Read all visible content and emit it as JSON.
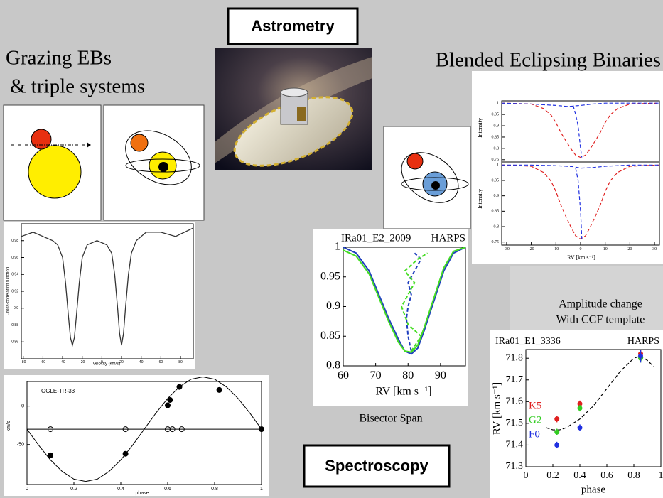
{
  "headings": {
    "grazing": [
      "Grazing EBs",
      "& triple systems"
    ],
    "blended": "Blended Eclipsing Binaries",
    "astrometry": "Astrometry",
    "spectroscopy": "Spectroscopy"
  },
  "captions": {
    "bisector_span": "Bisector Span",
    "amplitude": [
      "Amplitude change",
      "With CCF template"
    ]
  },
  "charts": {
    "ccf": {
      "type": "line",
      "xlabel": "velocity (km/s)",
      "ylabel": "Cross-correlation function",
      "xlim": [
        -82,
        93
      ],
      "ylim": [
        0.84,
        1.0
      ],
      "xticks": [
        -80,
        -60,
        -40,
        -20,
        0,
        20,
        40,
        60,
        80
      ],
      "yticks": [
        0.86,
        0.88,
        0.9,
        0.92,
        0.94,
        0.96,
        0.98
      ],
      "series": [
        {
          "color": "#333333",
          "style": "line",
          "x": [
            -82,
            -70,
            -60,
            -50,
            -45,
            -40,
            -37,
            -34,
            -32,
            -30,
            -28,
            -26,
            -23,
            -20,
            -15,
            -5,
            5,
            10,
            13,
            16,
            18,
            20,
            22,
            24,
            27,
            30,
            35,
            45,
            60,
            75,
            93
          ],
          "values": [
            0.985,
            0.99,
            0.985,
            0.98,
            0.975,
            0.96,
            0.93,
            0.89,
            0.865,
            0.856,
            0.865,
            0.89,
            0.93,
            0.96,
            0.975,
            0.98,
            0.975,
            0.965,
            0.94,
            0.9,
            0.87,
            0.856,
            0.87,
            0.9,
            0.94,
            0.965,
            0.98,
            0.99,
            0.99,
            0.985,
            0.995
          ]
        }
      ]
    },
    "rv_phase": {
      "type": "scatter",
      "label": "OGLE-TR-33",
      "xlabel": "phase",
      "ylabel": "km/s",
      "xlim": [
        0,
        1
      ],
      "ylim": [
        -102,
        32
      ],
      "xticks": [
        0,
        0.2,
        0.4,
        0.6,
        0.8,
        1
      ],
      "yticks": [
        0,
        -50
      ],
      "series": [
        {
          "color": "#000000",
          "style": "line",
          "x": [
            0,
            0.05,
            0.1,
            0.15,
            0.2,
            0.25,
            0.3,
            0.35,
            0.4,
            0.45,
            0.5,
            0.55,
            0.6,
            0.65,
            0.7,
            0.75,
            0.8,
            0.85,
            0.9,
            0.95,
            1
          ],
          "values": [
            -30,
            -51,
            -70,
            -85,
            -95,
            -98,
            -95,
            -85,
            -70,
            -51,
            -30,
            -9,
            10,
            25,
            35,
            38,
            35,
            25,
            10,
            -9,
            -30
          ]
        },
        {
          "color": "#000000",
          "style": "line",
          "x": [
            0,
            1
          ],
          "values": [
            -30,
            -30
          ]
        },
        {
          "color": "#000000",
          "style": "open",
          "x": [
            0.1,
            0.42,
            0.6,
            0.62,
            0.66
          ],
          "values": [
            -30,
            -30,
            -30,
            -30,
            -30
          ]
        },
        {
          "color": "#000000",
          "style": "dots",
          "x": [
            0.1,
            0.42,
            0.6,
            0.61,
            0.65,
            0.82,
            1
          ],
          "values": [
            -64,
            -62,
            1,
            8,
            25,
            21,
            -30
          ]
        }
      ]
    },
    "intensity": {
      "type": "line",
      "xlabel": "RV [km s⁻¹]",
      "xlim": [
        -32,
        32
      ],
      "xticks": [
        -30,
        -20,
        -10,
        0,
        10,
        20,
        30
      ],
      "panels": [
        {
          "ylabel": "Intensity",
          "ylim": [
            0.74,
            1.01
          ],
          "yticks": [
            0.75,
            0.8,
            0.85,
            0.9,
            0.95,
            1
          ],
          "series": [
            {
              "color": "#e02020",
              "style": "dashed",
              "x": [
                -32,
                -25,
                -20,
                -15,
                -12,
                -10,
                -8,
                -6,
                -4,
                -2,
                0,
                2,
                4,
                6,
                8,
                10,
                12,
                15,
                20,
                25,
                32
              ],
              "values": [
                1,
                0.998,
                0.996,
                0.976,
                0.948,
                0.914,
                0.87,
                0.834,
                0.8,
                0.77,
                0.76,
                0.77,
                0.8,
                0.834,
                0.87,
                0.914,
                0.948,
                0.976,
                0.996,
                0.998,
                1
              ]
            },
            {
              "color": "#2030e0",
              "style": "dashed",
              "x": [
                -32,
                -20,
                -10,
                -5,
                0,
                5,
                10,
                20,
                32
              ],
              "values": [
                1,
                0.996,
                0.99,
                0.985,
                0.99,
                0.996,
                1,
                1,
                1
              ]
            },
            {
              "color": "#2030e0",
              "style": "dashed",
              "x": [
                -3,
                -2,
                -1,
                -0.5,
                0,
                0.5
              ],
              "values": [
                0.99,
                0.95,
                0.9,
                0.85,
                0.8,
                0.76
              ]
            }
          ]
        },
        {
          "ylabel": "Intensity",
          "ylim": [
            0.74,
            1.01
          ],
          "yticks": [
            0.75,
            0.8,
            0.85,
            0.9,
            0.95,
            1
          ],
          "series": [
            {
              "color": "#e02020",
              "style": "dashed",
              "x": [
                -32,
                -25,
                -20,
                -15,
                -12,
                -10,
                -8,
                -6,
                -4,
                -2,
                0,
                2,
                4,
                6,
                8,
                10,
                12,
                15,
                20,
                25,
                32
              ],
              "values": [
                1,
                0.998,
                0.996,
                0.976,
                0.948,
                0.914,
                0.87,
                0.834,
                0.8,
                0.77,
                0.76,
                0.77,
                0.8,
                0.834,
                0.87,
                0.914,
                0.948,
                0.976,
                0.996,
                0.998,
                1
              ]
            },
            {
              "color": "#2030e0",
              "style": "dashed",
              "x": [
                -32,
                -20,
                -10,
                -3,
                0,
                5,
                10,
                20,
                32
              ],
              "values": [
                1,
                1,
                0.998,
                0.995,
                0.99,
                0.992,
                0.996,
                1,
                1
              ]
            },
            {
              "color": "#2030e0",
              "style": "dashed",
              "x": [
                -2,
                -1,
                -0.5,
                0,
                0.3,
                0.5
              ],
              "values": [
                0.99,
                0.95,
                0.9,
                0.85,
                0.8,
                0.76
              ]
            }
          ]
        }
      ]
    },
    "bisector": {
      "type": "line",
      "title": "IRa01_E2_2009",
      "instrument": "HARPS",
      "xlabel": "RV [km s⁻¹]",
      "xlim": [
        60,
        97.7
      ],
      "ylim": [
        0.8,
        1
      ],
      "xticks": [
        60,
        70,
        80,
        90
      ],
      "yticks": [
        0.8,
        0.85,
        0.9,
        0.95,
        1
      ],
      "series": [
        {
          "color": "#1f3fbf",
          "style": "line",
          "x": [
            60,
            64,
            68,
            71,
            74,
            77,
            79,
            81,
            83,
            85,
            88,
            91,
            94,
            97.7
          ],
          "values": [
            1,
            0.99,
            0.96,
            0.92,
            0.88,
            0.845,
            0.825,
            0.82,
            0.83,
            0.86,
            0.91,
            0.96,
            0.99,
            1
          ]
        },
        {
          "color": "#44dd22",
          "style": "line",
          "x": [
            60,
            64,
            68,
            71,
            74,
            77,
            79,
            81,
            83,
            85,
            88,
            91,
            94,
            97.7
          ],
          "values": [
            0.995,
            0.985,
            0.955,
            0.915,
            0.875,
            0.84,
            0.825,
            0.823,
            0.835,
            0.865,
            0.915,
            0.965,
            0.993,
            1
          ]
        },
        {
          "color": "#1f3fbf",
          "style": "dashed",
          "x": [
            81,
            80,
            79.5,
            80,
            81,
            80,
            82,
            83,
            84,
            82
          ],
          "values": [
            0.825,
            0.85,
            0.88,
            0.9,
            0.92,
            0.94,
            0.96,
            0.97,
            0.98,
            0.99
          ]
        },
        {
          "color": "#44dd22",
          "style": "dashed",
          "x": [
            81,
            84,
            80,
            78,
            80,
            82,
            79,
            83,
            86
          ],
          "values": [
            0.825,
            0.85,
            0.87,
            0.9,
            0.92,
            0.94,
            0.96,
            0.98,
            0.99
          ]
        }
      ]
    },
    "rv_template": {
      "type": "scatter",
      "title": "IRa01_E1_3336",
      "instrument": "HARPS",
      "xlabel": "phase",
      "ylabel": "RV [km s⁻¹]",
      "xlim": [
        0,
        1
      ],
      "ylim": [
        71.3,
        71.84
      ],
      "xticks": [
        0,
        0.2,
        0.4,
        0.6,
        0.8,
        1
      ],
      "yticks": [
        71.3,
        71.4,
        71.5,
        71.6,
        71.7,
        71.8
      ],
      "curve": {
        "color": "#000000",
        "style": "dashed",
        "x": [
          0.15,
          0.2,
          0.25,
          0.3,
          0.4,
          0.5,
          0.6,
          0.7,
          0.8,
          0.85,
          0.9,
          0.95
        ],
        "values": [
          71.48,
          71.47,
          71.47,
          71.48,
          71.52,
          71.58,
          71.66,
          71.74,
          71.8,
          71.81,
          71.79,
          71.76
        ]
      },
      "series": [
        {
          "name": "K5",
          "color": "#e02020",
          "style": "dots",
          "x": [
            0.23,
            0.4,
            0.85
          ],
          "values": [
            71.52,
            71.59,
            71.82
          ],
          "errors": [
            0.015,
            0.015,
            0.02
          ]
        },
        {
          "name": "G2",
          "color": "#33cc22",
          "style": "dots",
          "x": [
            0.23,
            0.4,
            0.85
          ],
          "values": [
            71.46,
            71.57,
            71.8
          ],
          "errors": [
            0.015,
            0.015,
            0.02
          ]
        },
        {
          "name": "F0",
          "color": "#2030e0",
          "style": "dots",
          "x": [
            0.23,
            0.4,
            0.85
          ],
          "values": [
            71.4,
            71.48,
            71.81
          ],
          "errors": [
            0.015,
            0.015,
            0.03
          ]
        }
      ]
    }
  }
}
